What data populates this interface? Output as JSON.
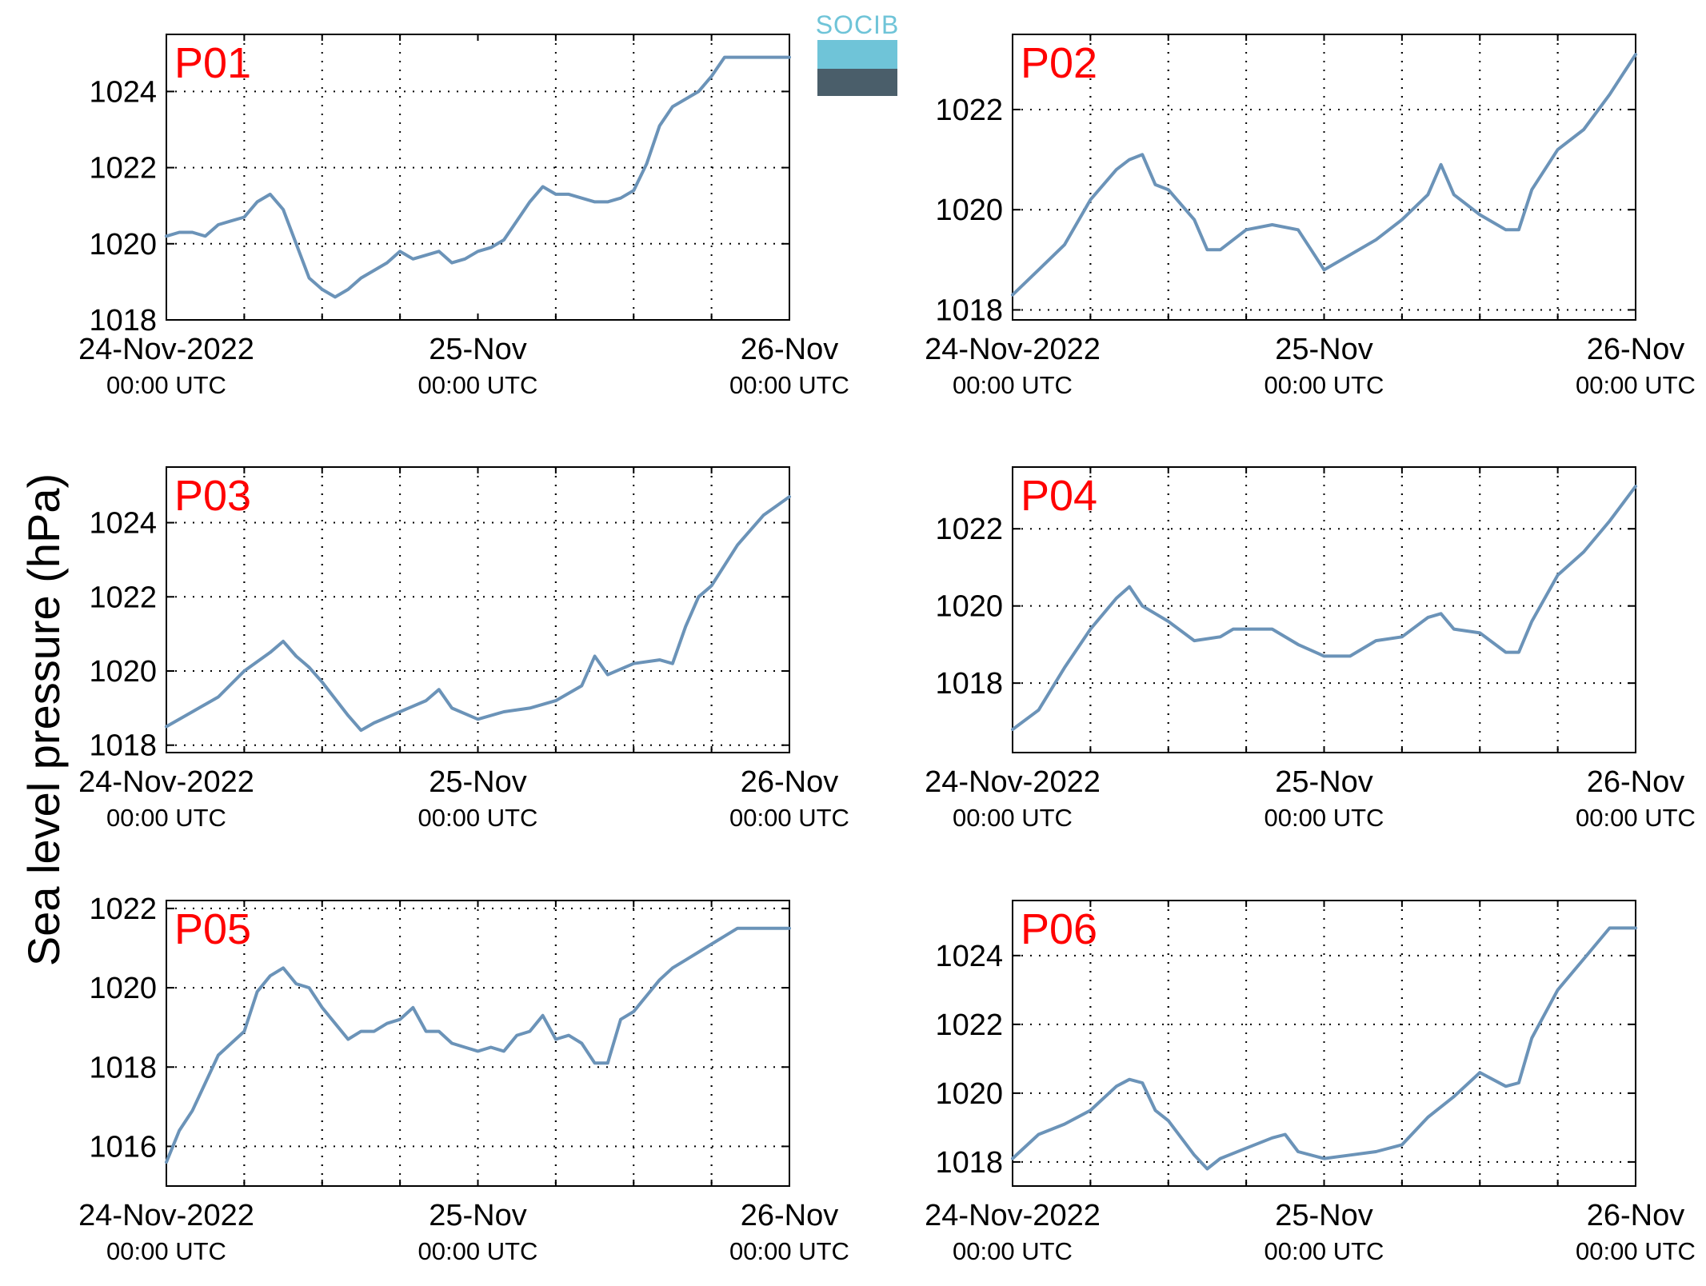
{
  "ylabel": "Sea level pressure (hPa)",
  "logo": {
    "text": "SOCIB"
  },
  "colors": {
    "line": "#6b93b8",
    "panel_label": "#ff0000",
    "logo_top": "#6fc4d8",
    "logo_bottom": "#33444f"
  },
  "chart_data": [
    {
      "type": "line",
      "name": "P01",
      "label": "P01",
      "ylim": [
        1018,
        1025.5
      ],
      "yticks": [
        1018,
        1020,
        1022,
        1024
      ],
      "xlim": [
        0,
        48
      ],
      "xticks": [
        0,
        18,
        36,
        48
      ],
      "xticklabels": [
        [
          "24-Nov-2022",
          "00:00 UTC"
        ],
        [
          "25-Nov",
          "00:00 UTC"
        ],
        [
          "26-Nov",
          "00:00 UTC"
        ]
      ],
      "xticklabel_positions": [
        0,
        24,
        48
      ],
      "x": [
        0,
        1,
        2,
        3,
        4,
        5,
        6,
        7,
        8,
        9,
        10,
        11,
        12,
        13,
        14,
        15,
        16,
        17,
        18,
        19,
        20,
        21,
        22,
        23,
        24,
        25,
        26,
        27,
        28,
        29,
        30,
        31,
        32,
        33,
        34,
        35,
        36,
        37,
        38,
        39,
        40,
        41,
        42,
        43,
        44,
        45,
        46,
        47,
        48
      ],
      "values": [
        1020.2,
        1020.3,
        1020.3,
        1020.2,
        1020.5,
        1020.6,
        1020.7,
        1021.1,
        1021.3,
        1020.9,
        1020.0,
        1019.1,
        1018.8,
        1018.6,
        1018.8,
        1019.1,
        1019.3,
        1019.5,
        1019.8,
        1019.6,
        1019.7,
        1019.8,
        1019.5,
        1019.6,
        1019.8,
        1019.9,
        1020.1,
        1020.6,
        1021.1,
        1021.5,
        1021.3,
        1021.3,
        1021.2,
        1021.1,
        1021.1,
        1021.2,
        1021.4,
        1022.1,
        1023.1,
        1023.6,
        1023.8,
        1024.0,
        1024.4,
        1024.9,
        1024.9,
        1024.9,
        1024.9,
        1024.9,
        1024.9
      ]
    },
    {
      "type": "line",
      "name": "P02",
      "label": "P02",
      "ylim": [
        1017.8,
        1023.5
      ],
      "yticks": [
        1018,
        1020,
        1022
      ],
      "xlim": [
        0,
        48
      ],
      "xticks": [
        0,
        6,
        12,
        18,
        24,
        30,
        36,
        42,
        48
      ],
      "xticklabels": [
        [
          "24-Nov-2022",
          "00:00 UTC"
        ],
        [
          "25-Nov",
          "00:00 UTC"
        ],
        [
          "26-Nov",
          "00:00 UTC"
        ]
      ],
      "xticklabel_positions": [
        0,
        24,
        48
      ],
      "x": [
        0,
        2,
        4,
        6,
        8,
        9,
        10,
        11,
        12,
        14,
        15,
        16,
        18,
        20,
        22,
        23,
        24,
        26,
        28,
        30,
        32,
        33,
        34,
        36,
        38,
        39,
        40,
        42,
        44,
        46,
        48
      ],
      "values": [
        1018.3,
        1018.8,
        1019.3,
        1020.2,
        1020.8,
        1021.0,
        1021.1,
        1020.5,
        1020.4,
        1019.8,
        1019.2,
        1019.2,
        1019.6,
        1019.7,
        1019.6,
        1019.2,
        1018.8,
        1019.1,
        1019.4,
        1019.8,
        1020.3,
        1020.9,
        1020.3,
        1019.9,
        1019.6,
        1019.6,
        1020.4,
        1021.2,
        1021.6,
        1022.3,
        1023.1
      ]
    },
    {
      "type": "line",
      "name": "P03",
      "label": "P03",
      "ylim": [
        1017.8,
        1025.5
      ],
      "yticks": [
        1018,
        1020,
        1022,
        1024
      ],
      "xlim": [
        0,
        48
      ],
      "xticks": [
        0,
        6,
        12,
        18,
        24,
        30,
        36,
        42,
        48
      ],
      "xticklabels": [
        [
          "24-Nov-2022",
          "00:00 UTC"
        ],
        [
          "25-Nov",
          "00:00 UTC"
        ],
        [
          "26-Nov",
          "00:00 UTC"
        ]
      ],
      "xticklabel_positions": [
        0,
        24,
        48
      ],
      "x": [
        0,
        2,
        4,
        6,
        8,
        9,
        10,
        11,
        12,
        14,
        15,
        16,
        18,
        20,
        21,
        22,
        24,
        26,
        28,
        30,
        32,
        33,
        34,
        36,
        38,
        39,
        40,
        41,
        42,
        44,
        46,
        48
      ],
      "values": [
        1018.5,
        1018.9,
        1019.3,
        1020.0,
        1020.5,
        1020.8,
        1020.4,
        1020.1,
        1019.7,
        1018.8,
        1018.4,
        1018.6,
        1018.9,
        1019.2,
        1019.5,
        1019.0,
        1018.7,
        1018.9,
        1019.0,
        1019.2,
        1019.6,
        1020.4,
        1019.9,
        1020.2,
        1020.3,
        1020.2,
        1021.2,
        1022.0,
        1022.3,
        1023.4,
        1024.2,
        1024.7
      ]
    },
    {
      "type": "line",
      "name": "P04",
      "label": "P04",
      "ylim": [
        1016.2,
        1023.6
      ],
      "yticks": [
        1018,
        1020,
        1022
      ],
      "xlim": [
        0,
        48
      ],
      "xticks": [
        0,
        6,
        12,
        18,
        24,
        30,
        36,
        42,
        48
      ],
      "xticklabels": [
        [
          "24-Nov-2022",
          "00:00 UTC"
        ],
        [
          "25-Nov",
          "00:00 UTC"
        ],
        [
          "26-Nov",
          "00:00 UTC"
        ]
      ],
      "xticklabel_positions": [
        0,
        24,
        48
      ],
      "x": [
        0,
        2,
        4,
        6,
        8,
        9,
        10,
        11,
        12,
        14,
        16,
        17,
        18,
        20,
        22,
        24,
        26,
        28,
        30,
        32,
        33,
        34,
        36,
        38,
        39,
        40,
        42,
        44,
        46,
        48
      ],
      "values": [
        1016.8,
        1017.3,
        1018.4,
        1019.4,
        1020.2,
        1020.5,
        1020.0,
        1019.8,
        1019.6,
        1019.1,
        1019.2,
        1019.4,
        1019.4,
        1019.4,
        1019.0,
        1018.7,
        1018.7,
        1019.1,
        1019.2,
        1019.7,
        1019.8,
        1019.4,
        1019.3,
        1018.8,
        1018.8,
        1019.6,
        1020.8,
        1021.4,
        1022.2,
        1023.1
      ]
    },
    {
      "type": "line",
      "name": "P05",
      "label": "P05",
      "ylim": [
        1015,
        1022.2
      ],
      "yticks": [
        1016,
        1018,
        1020,
        1022
      ],
      "xlim": [
        0,
        48
      ],
      "xticks": [
        0,
        6,
        12,
        18,
        24,
        30,
        36,
        42,
        48
      ],
      "xticklabels": [
        [
          "24-Nov-2022",
          "00:00 UTC"
        ],
        [
          "25-Nov",
          "00:00 UTC"
        ],
        [
          "26-Nov",
          "00:00 UTC"
        ]
      ],
      "xticklabel_positions": [
        0,
        24,
        48
      ],
      "x": [
        0,
        1,
        2,
        3,
        4,
        5,
        6,
        7,
        8,
        9,
        10,
        11,
        12,
        13,
        14,
        15,
        16,
        17,
        18,
        19,
        20,
        21,
        22,
        23,
        24,
        25,
        26,
        27,
        28,
        29,
        30,
        31,
        32,
        33,
        34,
        35,
        36,
        37,
        38,
        39,
        40,
        41,
        42,
        43,
        44,
        45,
        46,
        47,
        48
      ],
      "values": [
        1015.6,
        1016.4,
        1016.9,
        1017.6,
        1018.3,
        1018.6,
        1018.9,
        1019.9,
        1020.3,
        1020.5,
        1020.1,
        1020.0,
        1019.5,
        1019.1,
        1018.7,
        1018.9,
        1018.9,
        1019.1,
        1019.2,
        1019.5,
        1018.9,
        1018.9,
        1018.6,
        1018.5,
        1018.4,
        1018.5,
        1018.4,
        1018.8,
        1018.9,
        1019.3,
        1018.7,
        1018.8,
        1018.6,
        1018.1,
        1018.1,
        1019.2,
        1019.4,
        1019.8,
        1020.2,
        1020.5,
        1020.7,
        1020.9,
        1021.1,
        1021.3,
        1021.5,
        1021.5,
        1021.5,
        1021.5,
        1021.5
      ]
    },
    {
      "type": "line",
      "name": "P06",
      "label": "P06",
      "ylim": [
        1017.3,
        1025.6
      ],
      "yticks": [
        1018,
        1020,
        1022,
        1024
      ],
      "xlim": [
        0,
        48
      ],
      "xticks": [
        0,
        6,
        12,
        18,
        24,
        30,
        36,
        42,
        48
      ],
      "xticklabels": [
        [
          "24-Nov-2022",
          "00:00 UTC"
        ],
        [
          "25-Nov",
          "00:00 UTC"
        ],
        [
          "26-Nov",
          "00:00 UTC"
        ]
      ],
      "xticklabel_positions": [
        0,
        24,
        48
      ],
      "x": [
        0,
        2,
        4,
        6,
        8,
        9,
        10,
        11,
        12,
        14,
        15,
        16,
        18,
        20,
        21,
        22,
        24,
        26,
        28,
        30,
        32,
        34,
        36,
        38,
        39,
        40,
        42,
        44,
        46,
        48
      ],
      "values": [
        1018.1,
        1018.8,
        1019.1,
        1019.5,
        1020.2,
        1020.4,
        1020.3,
        1019.5,
        1019.2,
        1018.2,
        1017.8,
        1018.1,
        1018.4,
        1018.7,
        1018.8,
        1018.3,
        1018.1,
        1018.2,
        1018.3,
        1018.5,
        1019.3,
        1019.9,
        1020.6,
        1020.2,
        1020.3,
        1021.6,
        1023.0,
        1023.9,
        1024.8,
        1024.8
      ]
    }
  ]
}
